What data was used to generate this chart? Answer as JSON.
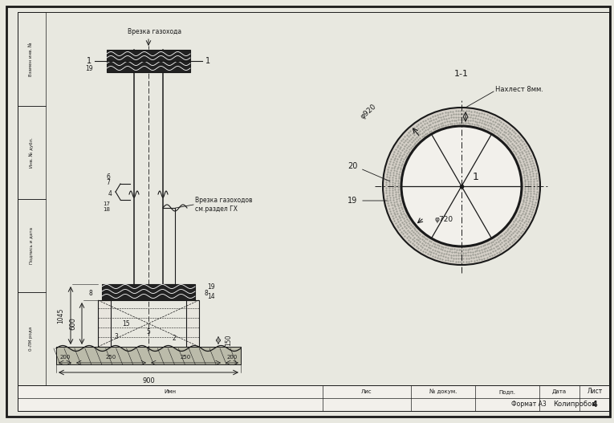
{
  "bg_color": "#e8e8e0",
  "paper_color": "#f2f0eb",
  "line_color": "#1a1a1a",
  "title_section_label": "1-1",
  "nakhlest_label": "Нахлест 8мм.",
  "outer_diam_label": "φ920",
  "inner_diam_label": "φ720",
  "insulation_label_20": "20",
  "insulation_label_19": "19",
  "center_label_1": "1",
  "section_title_top": "Врезка газохода",
  "section_label_mid": "Врезка газоходов\nсм.раздел ГХ",
  "dim_900": "900",
  "dim_200": "200",
  "dim_250": "250",
  "dim_600": "600",
  "dim_1045": "1045",
  "dim_150": "150",
  "stamp_text": "Колипробов",
  "format_text": "Формат А3",
  "sheet_num": "4",
  "sheet_label": "Лист"
}
